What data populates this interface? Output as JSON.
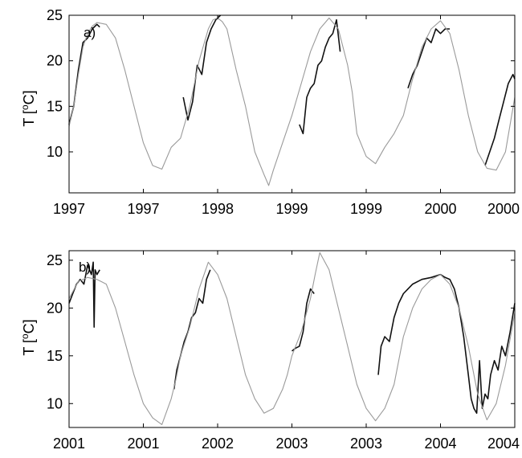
{
  "chart_data": [
    {
      "type": "line",
      "panel_label": "a)",
      "ylabel": "T [",
      "ylabel_unit": "C]",
      "ylabel_sup": "o",
      "ylim": [
        5.5,
        25
      ],
      "yticks": [
        10,
        15,
        20,
        25
      ],
      "xlim": [
        0,
        48
      ],
      "xtick_positions": [
        0,
        8,
        16,
        24,
        32,
        40,
        48
      ],
      "xtick_labels": [
        "1997",
        "1997",
        "1998",
        "1999",
        "1999",
        "2000",
        "2000"
      ],
      "colors": {
        "reference": "#9a9a9a",
        "observed": "#111111"
      },
      "series": [
        {
          "role": "reference",
          "x": [
            0,
            0.5,
            1,
            1.5,
            2,
            2.5,
            3,
            4,
            5,
            6,
            7,
            8,
            9,
            10,
            11,
            12,
            13,
            14,
            15,
            15.5,
            16,
            16.5,
            17,
            18,
            19,
            20,
            21,
            21.5,
            22,
            23,
            24,
            25,
            26,
            27,
            28,
            29,
            30,
            30.5,
            31,
            32,
            33,
            34,
            35,
            36,
            37,
            38,
            39,
            40,
            41,
            42,
            43,
            44,
            45,
            46,
            47,
            48
          ],
          "y": [
            12.8,
            15,
            18.5,
            21.5,
            23,
            23.8,
            24.2,
            24,
            22.5,
            19,
            15,
            11,
            8.5,
            8.1,
            10.5,
            11.5,
            15,
            20,
            23.5,
            24.5,
            24.7,
            24.3,
            23.5,
            19,
            15,
            10,
            7.5,
            6.3,
            8,
            11,
            14,
            17.5,
            21,
            23.5,
            24.7,
            23.5,
            19.5,
            16.5,
            12,
            9.5,
            8.7,
            10.5,
            12,
            14,
            18,
            21.5,
            23.5,
            24.4,
            23,
            19,
            14,
            10,
            8.2,
            8,
            10,
            16
          ]
        },
        {
          "role": "observed",
          "x": [
            0,
            0.5,
            1,
            1.5,
            2,
            2.5,
            3,
            3.3
          ],
          "y": [
            13,
            15,
            19,
            22,
            22.5,
            23.5,
            24,
            23.7
          ]
        },
        {
          "role": "observed",
          "x": [
            12.3,
            12.8,
            13.3,
            13.8,
            14.3,
            14.8,
            15.3,
            15.8,
            16.3
          ],
          "y": [
            16,
            13.5,
            15.5,
            19.5,
            18.5,
            22,
            23.5,
            24.5,
            25
          ]
        },
        {
          "role": "observed",
          "x": [
            24.8,
            25.2,
            25.6,
            26,
            26.4,
            26.8,
            27.2,
            27.6,
            28,
            28.4,
            28.8,
            29.2
          ],
          "y": [
            13,
            12,
            16,
            17,
            17.5,
            19.5,
            20,
            21.5,
            22.5,
            23,
            24.5,
            21
          ]
        },
        {
          "role": "observed",
          "x": [
            36.5,
            37,
            37.5,
            38,
            38.5,
            39,
            39.5,
            40,
            40.5,
            41
          ],
          "y": [
            17,
            18.5,
            19.5,
            21,
            22.5,
            22,
            23.5,
            23,
            23.5,
            23.5
          ]
        },
        {
          "role": "observed",
          "x": [
            44.8,
            45.3,
            45.8,
            46.3,
            46.8,
            47.3,
            47.8,
            48
          ],
          "y": [
            8.5,
            10,
            11.5,
            13.5,
            15.5,
            17.5,
            18.5,
            18
          ]
        }
      ]
    },
    {
      "type": "line",
      "panel_label": "b)",
      "ylabel": "T [",
      "ylabel_unit": "C]",
      "ylabel_sup": "o",
      "ylim": [
        7.5,
        26
      ],
      "yticks": [
        10,
        15,
        20,
        25
      ],
      "xlim": [
        0,
        48
      ],
      "xtick_positions": [
        0,
        8,
        16,
        24,
        32,
        40,
        48
      ],
      "xtick_labels": [
        "2001",
        "2001",
        "2002",
        "2003",
        "2003",
        "2004",
        "2004"
      ],
      "colors": {
        "reference": "#9a9a9a",
        "observed": "#111111"
      },
      "series": [
        {
          "role": "reference",
          "x": [
            0,
            1,
            2,
            3,
            4,
            5,
            6,
            7,
            8,
            9,
            10,
            11,
            11.5,
            12,
            13,
            14,
            15,
            16,
            17,
            18,
            19,
            20,
            21,
            22,
            23,
            23.5,
            24,
            25,
            26,
            26.5,
            27,
            28,
            29,
            30,
            31,
            32,
            33,
            34,
            35,
            36,
            37,
            38,
            39,
            40,
            41,
            42,
            43,
            44,
            45,
            46,
            47,
            48
          ],
          "y": [
            21,
            22.8,
            23.2,
            23,
            22.5,
            20,
            16.5,
            13,
            10,
            8.5,
            7.8,
            10.5,
            12.5,
            15,
            18,
            22,
            24.8,
            23.5,
            21,
            17,
            13,
            10.5,
            9,
            9.5,
            11.5,
            13,
            15,
            17.5,
            21,
            23.5,
            25.8,
            24,
            20,
            16,
            12,
            9.5,
            8.2,
            9.5,
            12,
            17,
            20,
            22,
            23,
            23.5,
            22.5,
            20,
            16,
            11,
            8.3,
            10,
            14,
            19.5
          ]
        },
        {
          "role": "observed",
          "x": [
            0,
            0.4,
            0.8,
            1.2,
            1.6,
            2,
            2.4,
            2.6,
            2.7,
            2.8,
            3,
            3.3
          ],
          "y": [
            20.5,
            21.5,
            22.5,
            23,
            22.5,
            24.5,
            23.5,
            24.8,
            18,
            24,
            23.5,
            24
          ]
        },
        {
          "role": "observed",
          "x": [
            11.3,
            11.6,
            12,
            12.4,
            12.8,
            13.2,
            13.6,
            14,
            14.4,
            14.8,
            15.2
          ],
          "y": [
            11.5,
            13.5,
            15,
            16.5,
            17.5,
            19,
            19.5,
            21,
            20.5,
            23,
            24
          ]
        },
        {
          "role": "observed",
          "x": [
            24,
            24.4,
            24.8,
            25.2,
            25.6,
            26,
            26.4
          ],
          "y": [
            15.5,
            15.8,
            16,
            17.5,
            20.5,
            22,
            21.5
          ]
        },
        {
          "role": "observed",
          "x": [
            33.3,
            33.6,
            34,
            34.5,
            35,
            35.5,
            36,
            37,
            38,
            39,
            40,
            40.5,
            41,
            41.5,
            42,
            42.5,
            43,
            43.3,
            43.6,
            43.9,
            44.2,
            44.5,
            44.8,
            45.1,
            45.4,
            45.8,
            46.2,
            46.6,
            47,
            47.5,
            48
          ],
          "y": [
            13,
            16,
            17,
            16.5,
            19,
            20.5,
            21.5,
            22.5,
            23,
            23.2,
            23.5,
            23.2,
            23,
            22,
            20,
            17,
            13,
            10.5,
            9.5,
            9,
            14.5,
            9.5,
            11,
            10.5,
            13,
            14.5,
            13.5,
            16,
            15,
            17.5,
            20.5
          ]
        }
      ]
    }
  ]
}
